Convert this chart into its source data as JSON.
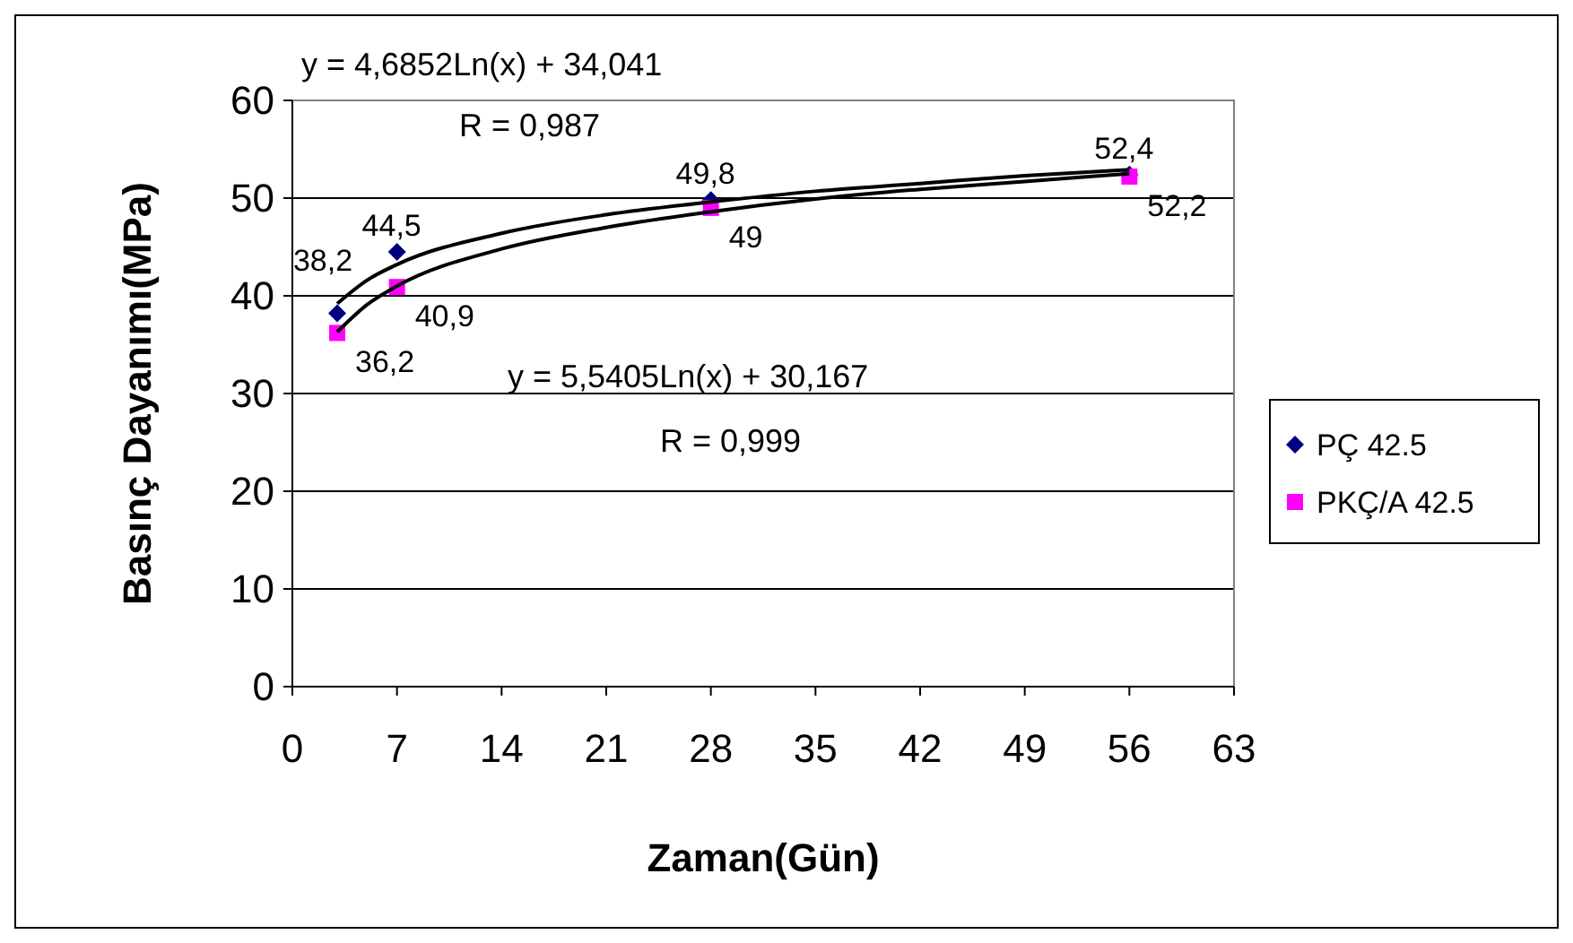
{
  "chart_data": {
    "type": "scatter",
    "xlabel": "Zaman(Gün)",
    "ylabel": "Basınç Dayanımı(MPa)",
    "xlim": [
      0,
      63
    ],
    "xticks": [
      0,
      7,
      14,
      21,
      28,
      35,
      42,
      49,
      56,
      63
    ],
    "ylim": [
      0,
      60
    ],
    "yticks": [
      0,
      10,
      20,
      30,
      40,
      50,
      60
    ],
    "grid": "y",
    "legend": "right",
    "annotations": [
      "y = 4,6852Ln(x) + 34,041",
      "R = 0,987",
      "y = 5,5405Ln(x) + 30,167",
      "R = 0,999"
    ],
    "series": [
      {
        "name": "PÇ 42.5",
        "color": "#000080",
        "marker": "diamond",
        "x": [
          3,
          7,
          28,
          56
        ],
        "values": [
          38.2,
          44.5,
          49.8,
          52.4
        ],
        "value_labels": [
          "38,2",
          "44,5",
          "49,8",
          "52,4"
        ]
      },
      {
        "name": "PKÇ/A 42.5",
        "color": "#ff00ff",
        "marker": "square",
        "x": [
          3,
          7,
          28,
          56
        ],
        "values": [
          36.2,
          40.9,
          49,
          52.2
        ],
        "value_labels": [
          "36,2",
          "40,9",
          "49",
          "52,2"
        ]
      },
      {
        "type": "line",
        "color": "#000000",
        "x": [
          3,
          5,
          7,
          14,
          21,
          28,
          35,
          42,
          49,
          56
        ],
        "values": [
          39.2,
          41.6,
          43.2,
          46.4,
          48.3,
          49.6,
          50.7,
          51.5,
          52.3,
          52.9
        ]
      },
      {
        "type": "line",
        "color": "#000000",
        "x": [
          3,
          5,
          7,
          14,
          21,
          28,
          35,
          42,
          49,
          56
        ],
        "values": [
          36.3,
          39.1,
          41,
          44.8,
          47,
          48.6,
          49.9,
          50.9,
          51.7,
          52.5
        ]
      }
    ]
  }
}
